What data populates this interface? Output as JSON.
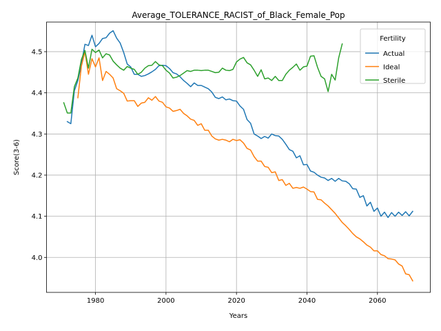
{
  "chart_data": {
    "type": "line",
    "title": "Average_TOLERANCE_RACIST_of_Black_Female_Pop",
    "xlabel": "Years",
    "ylabel": "Score(3-6)",
    "xlim": [
      1966.1,
      2075.0
    ],
    "ylim": [
      3.915,
      4.572
    ],
    "xticks": [
      1980,
      2000,
      2020,
      2040,
      2060
    ],
    "yticks": [
      4.0,
      4.1,
      4.2,
      4.3,
      4.4,
      4.5
    ],
    "grid": true,
    "legend": {
      "title": "Fertility",
      "position": "top-right"
    },
    "series": [
      {
        "name": "Actual",
        "color": "#1f77b4",
        "points": [
          [
            1972,
            4.33
          ],
          [
            1973,
            4.325
          ],
          [
            1974,
            4.405
          ],
          [
            1975,
            4.43
          ],
          [
            1976,
            4.47
          ],
          [
            1977,
            4.518
          ],
          [
            1978,
            4.515
          ],
          [
            1979,
            4.54
          ],
          [
            1980,
            4.512
          ],
          [
            1981,
            4.52
          ],
          [
            1982,
            4.532
          ],
          [
            1983,
            4.534
          ],
          [
            1984,
            4.545
          ],
          [
            1985,
            4.551
          ],
          [
            1986,
            4.533
          ],
          [
            1987,
            4.521
          ],
          [
            1988,
            4.498
          ],
          [
            1989,
            4.47
          ],
          [
            1990,
            4.463
          ],
          [
            1991,
            4.445
          ],
          [
            1992,
            4.445
          ],
          [
            1993,
            4.44
          ],
          [
            1994,
            4.442
          ],
          [
            1995,
            4.446
          ],
          [
            1996,
            4.451
          ],
          [
            1997,
            4.457
          ],
          [
            1998,
            4.466
          ],
          [
            1999,
            4.467
          ],
          [
            2000,
            4.466
          ],
          [
            2001,
            4.459
          ],
          [
            2002,
            4.449
          ],
          [
            2003,
            4.446
          ],
          [
            2004,
            4.439
          ],
          [
            2005,
            4.43
          ],
          [
            2006,
            4.423
          ],
          [
            2007,
            4.415
          ],
          [
            2008,
            4.424
          ],
          [
            2009,
            4.418
          ],
          [
            2010,
            4.418
          ],
          [
            2011,
            4.414
          ],
          [
            2012,
            4.41
          ],
          [
            2013,
            4.402
          ],
          [
            2014,
            4.389
          ],
          [
            2015,
            4.386
          ],
          [
            2016,
            4.39
          ],
          [
            2017,
            4.383
          ],
          [
            2018,
            4.385
          ],
          [
            2019,
            4.381
          ],
          [
            2020,
            4.38
          ],
          [
            2021,
            4.368
          ],
          [
            2022,
            4.36
          ],
          [
            2023,
            4.335
          ],
          [
            2024,
            4.326
          ],
          [
            2025,
            4.3
          ],
          [
            2026,
            4.295
          ],
          [
            2027,
            4.289
          ],
          [
            2028,
            4.294
          ],
          [
            2029,
            4.29
          ],
          [
            2030,
            4.3
          ],
          [
            2031,
            4.296
          ],
          [
            2032,
            4.295
          ],
          [
            2033,
            4.287
          ],
          [
            2034,
            4.275
          ],
          [
            2035,
            4.262
          ],
          [
            2036,
            4.258
          ],
          [
            2037,
            4.242
          ],
          [
            2038,
            4.247
          ],
          [
            2039,
            4.225
          ],
          [
            2040,
            4.226
          ],
          [
            2041,
            4.21
          ],
          [
            2042,
            4.207
          ],
          [
            2043,
            4.2
          ],
          [
            2044,
            4.195
          ],
          [
            2045,
            4.193
          ],
          [
            2046,
            4.187
          ],
          [
            2047,
            4.192
          ],
          [
            2048,
            4.185
          ],
          [
            2049,
            4.192
          ],
          [
            2050,
            4.186
          ],
          [
            2051,
            4.185
          ],
          [
            2052,
            4.179
          ],
          [
            2053,
            4.167
          ],
          [
            2054,
            4.166
          ],
          [
            2055,
            4.146
          ],
          [
            2056,
            4.15
          ],
          [
            2057,
            4.125
          ],
          [
            2058,
            4.134
          ],
          [
            2059,
            4.112
          ],
          [
            2060,
            4.12
          ],
          [
            2061,
            4.1
          ],
          [
            2062,
            4.11
          ],
          [
            2063,
            4.097
          ],
          [
            2064,
            4.109
          ],
          [
            2065,
            4.1
          ],
          [
            2066,
            4.11
          ],
          [
            2067,
            4.102
          ],
          [
            2068,
            4.111
          ],
          [
            2069,
            4.101
          ],
          [
            2070,
            4.112
          ]
        ]
      },
      {
        "name": "Ideal",
        "color": "#ff7f0e",
        "points": [
          [
            1975,
            4.388
          ],
          [
            1976,
            4.465
          ],
          [
            1977,
            4.5
          ],
          [
            1978,
            4.445
          ],
          [
            1979,
            4.483
          ],
          [
            1980,
            4.463
          ],
          [
            1981,
            4.485
          ],
          [
            1982,
            4.43
          ],
          [
            1983,
            4.452
          ],
          [
            1984,
            4.445
          ],
          [
            1985,
            4.436
          ],
          [
            1986,
            4.41
          ],
          [
            1987,
            4.405
          ],
          [
            1988,
            4.399
          ],
          [
            1989,
            4.38
          ],
          [
            1990,
            4.381
          ],
          [
            1991,
            4.381
          ],
          [
            1992,
            4.367
          ],
          [
            1993,
            4.375
          ],
          [
            1994,
            4.377
          ],
          [
            1995,
            4.388
          ],
          [
            1996,
            4.382
          ],
          [
            1997,
            4.391
          ],
          [
            1998,
            4.38
          ],
          [
            1999,
            4.377
          ],
          [
            2000,
            4.366
          ],
          [
            2001,
            4.363
          ],
          [
            2002,
            4.355
          ],
          [
            2003,
            4.357
          ],
          [
            2004,
            4.36
          ],
          [
            2005,
            4.35
          ],
          [
            2006,
            4.344
          ],
          [
            2007,
            4.336
          ],
          [
            2008,
            4.333
          ],
          [
            2009,
            4.321
          ],
          [
            2010,
            4.325
          ],
          [
            2011,
            4.309
          ],
          [
            2012,
            4.309
          ],
          [
            2013,
            4.295
          ],
          [
            2014,
            4.288
          ],
          [
            2015,
            4.285
          ],
          [
            2016,
            4.287
          ],
          [
            2017,
            4.285
          ],
          [
            2018,
            4.281
          ],
          [
            2019,
            4.287
          ],
          [
            2020,
            4.284
          ],
          [
            2021,
            4.286
          ],
          [
            2022,
            4.278
          ],
          [
            2023,
            4.265
          ],
          [
            2024,
            4.261
          ],
          [
            2025,
            4.245
          ],
          [
            2026,
            4.234
          ],
          [
            2027,
            4.234
          ],
          [
            2028,
            4.221
          ],
          [
            2029,
            4.219
          ],
          [
            2030,
            4.206
          ],
          [
            2031,
            4.208
          ],
          [
            2032,
            4.187
          ],
          [
            2033,
            4.189
          ],
          [
            2034,
            4.175
          ],
          [
            2035,
            4.18
          ],
          [
            2036,
            4.168
          ],
          [
            2037,
            4.17
          ],
          [
            2038,
            4.168
          ],
          [
            2039,
            4.171
          ],
          [
            2040,
            4.166
          ],
          [
            2041,
            4.16
          ],
          [
            2042,
            4.159
          ],
          [
            2043,
            4.141
          ],
          [
            2044,
            4.14
          ],
          [
            2045,
            4.132
          ],
          [
            2046,
            4.125
          ],
          [
            2047,
            4.116
          ],
          [
            2048,
            4.107
          ],
          [
            2049,
            4.096
          ],
          [
            2050,
            4.085
          ],
          [
            2051,
            4.077
          ],
          [
            2052,
            4.068
          ],
          [
            2053,
            4.058
          ],
          [
            2054,
            4.05
          ],
          [
            2055,
            4.045
          ],
          [
            2056,
            4.038
          ],
          [
            2057,
            4.03
          ],
          [
            2058,
            4.025
          ],
          [
            2059,
            4.016
          ],
          [
            2060,
            4.016
          ],
          [
            2061,
            4.007
          ],
          [
            2062,
            4.004
          ],
          [
            2063,
            3.997
          ],
          [
            2064,
            3.996
          ],
          [
            2065,
            3.994
          ],
          [
            2066,
            3.984
          ],
          [
            2067,
            3.979
          ],
          [
            2068,
            3.96
          ],
          [
            2069,
            3.958
          ],
          [
            2070,
            3.943
          ]
        ]
      },
      {
        "name": "Sterile",
        "color": "#2ca02c",
        "points": [
          [
            1971,
            4.376
          ],
          [
            1972,
            4.351
          ],
          [
            1973,
            4.351
          ],
          [
            1974,
            4.415
          ],
          [
            1975,
            4.436
          ],
          [
            1976,
            4.481
          ],
          [
            1977,
            4.503
          ],
          [
            1978,
            4.46
          ],
          [
            1979,
            4.506
          ],
          [
            1980,
            4.498
          ],
          [
            1981,
            4.504
          ],
          [
            1982,
            4.485
          ],
          [
            1983,
            4.495
          ],
          [
            1984,
            4.492
          ],
          [
            1985,
            4.477
          ],
          [
            1986,
            4.468
          ],
          [
            1987,
            4.46
          ],
          [
            1988,
            4.455
          ],
          [
            1989,
            4.464
          ],
          [
            1990,
            4.46
          ],
          [
            1991,
            4.457
          ],
          [
            1992,
            4.445
          ],
          [
            1993,
            4.45
          ],
          [
            1994,
            4.46
          ],
          [
            1995,
            4.466
          ],
          [
            1996,
            4.467
          ],
          [
            1997,
            4.476
          ],
          [
            1998,
            4.468
          ],
          [
            1999,
            4.466
          ],
          [
            2000,
            4.455
          ],
          [
            2001,
            4.448
          ],
          [
            2002,
            4.436
          ],
          [
            2003,
            4.438
          ],
          [
            2004,
            4.442
          ],
          [
            2005,
            4.448
          ],
          [
            2006,
            4.454
          ],
          [
            2007,
            4.452
          ],
          [
            2008,
            4.455
          ],
          [
            2009,
            4.455
          ],
          [
            2010,
            4.454
          ],
          [
            2011,
            4.455
          ],
          [
            2012,
            4.455
          ],
          [
            2013,
            4.452
          ],
          [
            2014,
            4.449
          ],
          [
            2015,
            4.45
          ],
          [
            2016,
            4.46
          ],
          [
            2017,
            4.455
          ],
          [
            2018,
            4.454
          ],
          [
            2019,
            4.457
          ],
          [
            2020,
            4.475
          ],
          [
            2021,
            4.482
          ],
          [
            2022,
            4.486
          ],
          [
            2023,
            4.473
          ],
          [
            2024,
            4.468
          ],
          [
            2025,
            4.455
          ],
          [
            2026,
            4.44
          ],
          [
            2027,
            4.456
          ],
          [
            2028,
            4.434
          ],
          [
            2029,
            4.436
          ],
          [
            2030,
            4.43
          ],
          [
            2031,
            4.44
          ],
          [
            2032,
            4.43
          ],
          [
            2033,
            4.43
          ],
          [
            2034,
            4.445
          ],
          [
            2035,
            4.455
          ],
          [
            2036,
            4.462
          ],
          [
            2037,
            4.47
          ],
          [
            2038,
            4.455
          ],
          [
            2039,
            4.463
          ],
          [
            2040,
            4.465
          ],
          [
            2041,
            4.489
          ],
          [
            2042,
            4.49
          ],
          [
            2043,
            4.462
          ],
          [
            2044,
            4.44
          ],
          [
            2045,
            4.434
          ],
          [
            2046,
            4.403
          ],
          [
            2047,
            4.445
          ],
          [
            2048,
            4.431
          ],
          [
            2049,
            4.485
          ],
          [
            2050,
            4.519
          ]
        ]
      }
    ]
  }
}
